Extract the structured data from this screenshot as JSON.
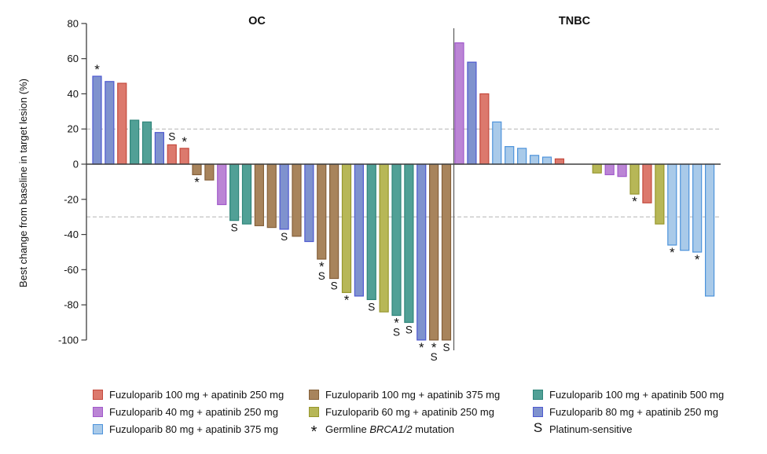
{
  "chart_data": {
    "type": "bar",
    "subtype": "waterfall",
    "ylabel": "Best change from baseline in target lesion (%)",
    "ylim": [
      -100,
      80
    ],
    "yticks": [
      80,
      60,
      40,
      20,
      0,
      -20,
      -40,
      -60,
      -80,
      -100
    ],
    "reference_lines_y": [
      20,
      -30
    ],
    "grid": "off",
    "groups": {
      "f100a250": {
        "label": "Fuzuloparib 100 mg + apatinib 250 mg",
        "fill": "#DC796D",
        "edge": "#C4493D"
      },
      "f40a250": {
        "label": "Fuzuloparib 40 mg + apatinib 250 mg",
        "fill": "#BB85D5",
        "edge": "#A159CB"
      },
      "f80a375": {
        "label": "Fuzuloparib 80 mg + apatinib 375 mg",
        "fill": "#A9CAE9",
        "edge": "#4D93DB"
      },
      "f100a375": {
        "label": "Fuzuloparib 100 mg + apatinib 375 mg",
        "fill": "#A8845C",
        "edge": "#85603A"
      },
      "f60a250": {
        "label": "Fuzuloparib 60 mg + apatinib 250 mg",
        "fill": "#B7B757",
        "edge": "#97972D"
      },
      "f100a500": {
        "label": "Fuzuloparib 100 mg + apatinib 500 mg",
        "fill": "#51A096",
        "edge": "#2F857A"
      },
      "f80a250": {
        "label": "Fuzuloparib 80 mg + apatinib 250 mg",
        "fill": "#7F92CE",
        "edge": "#4E59D0"
      }
    },
    "annotation_symbols": {
      "star": "*",
      "sensitive": "S"
    },
    "panels": [
      {
        "title": "OC",
        "bars": [
          {
            "v": 50,
            "g": "f80a250",
            "ann": "*"
          },
          {
            "v": 47,
            "g": "f80a250"
          },
          {
            "v": 46,
            "g": "f100a250"
          },
          {
            "v": 25,
            "g": "f100a500"
          },
          {
            "v": 24,
            "g": "f100a500"
          },
          {
            "v": 18,
            "g": "f80a250"
          },
          {
            "v": 11,
            "g": "f100a250",
            "ann": "S"
          },
          {
            "v": 9,
            "g": "f100a250",
            "ann": "*"
          },
          {
            "v": -6,
            "g": "f100a375",
            "ann": "*"
          },
          {
            "v": -9,
            "g": "f100a375"
          },
          {
            "v": -23,
            "g": "f40a250"
          },
          {
            "v": -32,
            "g": "f100a500",
            "ann": "S"
          },
          {
            "v": -34,
            "g": "f100a500"
          },
          {
            "v": -35,
            "g": "f100a375"
          },
          {
            "v": -36,
            "g": "f100a375"
          },
          {
            "v": -37,
            "g": "f80a250",
            "ann": "S"
          },
          {
            "v": -41,
            "g": "f100a375"
          },
          {
            "v": -44,
            "g": "f80a250"
          },
          {
            "v": -54,
            "g": "f100a375",
            "ann": "*S"
          },
          {
            "v": -65,
            "g": "f100a375",
            "ann": "S"
          },
          {
            "v": -73,
            "g": "f60a250",
            "ann": "*"
          },
          {
            "v": -75,
            "g": "f80a250"
          },
          {
            "v": -77,
            "g": "f100a500",
            "ann": "S"
          },
          {
            "v": -84,
            "g": "f60a250"
          },
          {
            "v": -86,
            "g": "f100a500",
            "ann": "*S"
          },
          {
            "v": -90,
            "g": "f100a500",
            "ann": "S"
          },
          {
            "v": -100,
            "g": "f80a250",
            "ann": "*"
          },
          {
            "v": -100,
            "g": "f100a375",
            "ann": "*S"
          },
          {
            "v": -100,
            "g": "f100a375",
            "ann": "S"
          }
        ]
      },
      {
        "title": "TNBC",
        "bars": [
          {
            "v": 69,
            "g": "f40a250"
          },
          {
            "v": 58,
            "g": "f80a250"
          },
          {
            "v": 40,
            "g": "f100a250"
          },
          {
            "v": 24,
            "g": "f80a375"
          },
          {
            "v": 10,
            "g": "f80a375"
          },
          {
            "v": 9,
            "g": "f80a375"
          },
          {
            "v": 5,
            "g": "f80a375"
          },
          {
            "v": 4,
            "g": "f80a375"
          },
          {
            "v": 3,
            "g": "f100a250"
          },
          {
            "v": 0
          },
          {
            "v": 0
          },
          {
            "v": -5,
            "g": "f60a250"
          },
          {
            "v": -6,
            "g": "f40a250"
          },
          {
            "v": -7,
            "g": "f40a250"
          },
          {
            "v": -17,
            "g": "f60a250",
            "ann": "*"
          },
          {
            "v": -22,
            "g": "f100a250"
          },
          {
            "v": -34,
            "g": "f60a250"
          },
          {
            "v": -46,
            "g": "f80a375",
            "ann": "*"
          },
          {
            "v": -49,
            "g": "f80a375"
          },
          {
            "v": -50,
            "g": "f80a375",
            "ann": "*"
          },
          {
            "v": -75,
            "g": "f80a375"
          }
        ]
      }
    ]
  },
  "legend": {
    "columns": [
      {
        "items": [
          {
            "type": "swatch",
            "group": "f100a250"
          },
          {
            "type": "swatch",
            "group": "f40a250"
          },
          {
            "type": "swatch",
            "group": "f80a375"
          }
        ]
      },
      {
        "items": [
          {
            "type": "swatch",
            "group": "f100a375"
          },
          {
            "type": "swatch",
            "group": "f60a250"
          },
          {
            "type": "symbol",
            "symbol": "*",
            "text_pre": "Germline ",
            "text_italic": "BRCA1/2",
            "text_post": " mutation"
          }
        ]
      },
      {
        "items": [
          {
            "type": "swatch",
            "group": "f100a500"
          },
          {
            "type": "swatch",
            "group": "f80a250"
          },
          {
            "type": "symbol",
            "symbol": "S",
            "text_pre": "Platinum-sensitive",
            "text_italic": "",
            "text_post": ""
          }
        ]
      }
    ]
  }
}
